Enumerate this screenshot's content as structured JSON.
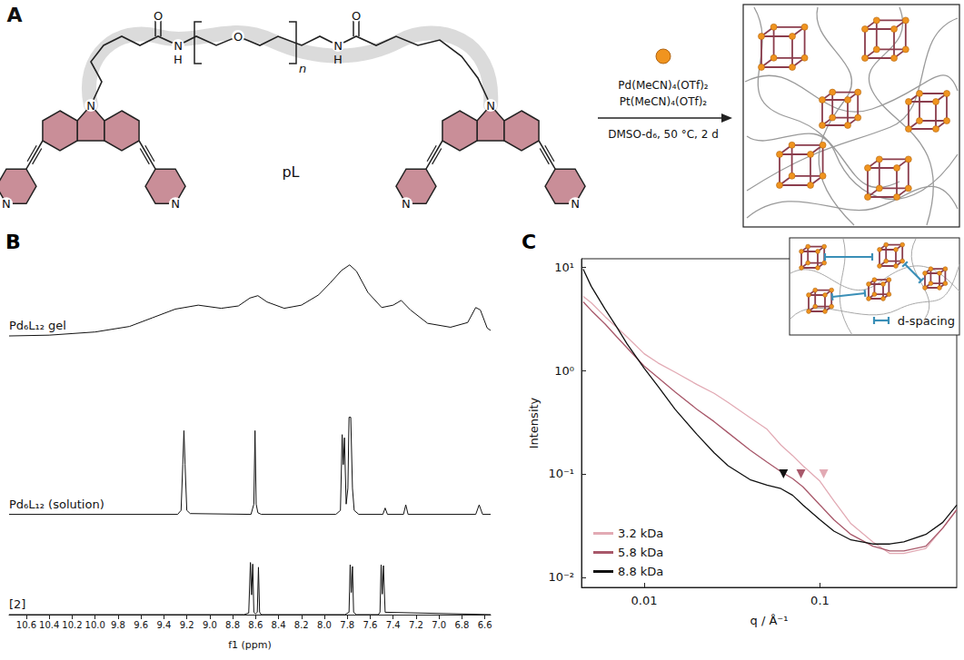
{
  "scheme": {
    "panel_label": "A",
    "ligand_label": "pL",
    "atoms": {
      "N": "N",
      "O": "O",
      "H": "H"
    },
    "repeat": "n",
    "reagents": [
      "Pd(MeCN)₄(OTf)₂",
      "Pt(MeCN)₄(OTf)₂"
    ],
    "conditions": "DMSO-d₆, 50 °C, 2 d"
  },
  "chart_data": [
    {
      "panel_label": "B",
      "type": "line",
      "x_label": "f1 (ppm)",
      "xlim": [
        10.75,
        6.55
      ],
      "xticks": [
        10.6,
        10.4,
        10.2,
        {
          "value": 10,
          "label": "10.0"
        },
        9.8,
        9.6,
        9.4,
        9.2,
        {
          "value": 9,
          "label": "9.0"
        },
        8.8,
        8.6,
        8.4,
        8.2,
        {
          "value": 8,
          "label": "8.0"
        },
        7.8,
        7.6,
        7.4,
        7.2,
        {
          "value": 7,
          "label": "7.0"
        },
        6.8,
        6.6
      ],
      "ylim": [
        0,
        46
      ],
      "tick_labels": "x",
      "grid": false,
      "series": [
        {
          "name": "Pd₆L₁₂ gel",
          "color": "#111111",
          "x": [
            10.75,
            10.4,
            10.0,
            9.7,
            9.5,
            9.3,
            9.1,
            8.9,
            8.75,
            8.65,
            8.58,
            8.5,
            8.35,
            8.2,
            8.05,
            7.95,
            7.85,
            7.78,
            7.72,
            7.62,
            7.5,
            7.4,
            7.33,
            7.25,
            7.1,
            6.9,
            6.75,
            6.68,
            6.64,
            6.58,
            6.55
          ],
          "values": [
            35.3,
            35.4,
            35.8,
            36.5,
            37.6,
            38.7,
            39.2,
            38.8,
            39.1,
            40.1,
            40.4,
            39.6,
            38.8,
            39.2,
            40.5,
            42.0,
            43.6,
            44.3,
            43.5,
            40.8,
            38.9,
            39.2,
            39.8,
            38.6,
            36.9,
            36.4,
            37.0,
            38.9,
            38.6,
            36.3,
            36.0
          ]
        },
        {
          "name": "Pd₆L₁₂ (solution)",
          "color": "#111111",
          "x": [
            10.75,
            9.28,
            9.25,
            9.235,
            9.225,
            9.215,
            9.2,
            9.17,
            8.64,
            8.615,
            8.605,
            8.595,
            8.58,
            8.55,
            7.9,
            7.86,
            7.845,
            7.835,
            7.825,
            7.81,
            7.795,
            7.785,
            7.77,
            7.755,
            7.74,
            7.7,
            7.49,
            7.47,
            7.45,
            7.31,
            7.29,
            7.27,
            6.68,
            6.65,
            6.62,
            6.55
          ],
          "values": [
            12.7,
            12.7,
            13.2,
            19,
            23.3,
            19,
            13.2,
            12.8,
            12.7,
            14,
            23.3,
            14,
            12.9,
            12.7,
            12.7,
            13.2,
            22.8,
            19,
            22.4,
            14,
            16,
            25,
            25,
            16,
            13.2,
            12.7,
            12.7,
            13.5,
            12.7,
            12.7,
            13.9,
            12.7,
            12.7,
            13.9,
            12.7,
            12.7
          ]
        },
        {
          "name": "[2]",
          "color": "#111111",
          "x": [
            10.75,
            8.7,
            8.66,
            8.645,
            8.635,
            8.625,
            8.615,
            8.6,
            8.585,
            8.575,
            8.565,
            8.55,
            7.82,
            7.785,
            7.775,
            7.765,
            7.755,
            7.745,
            7.72,
            7.53,
            7.515,
            7.505,
            7.495,
            7.485,
            7.47,
            6.55
          ],
          "values": [
            0,
            0,
            0.2,
            6.6,
            2.5,
            6.4,
            0.3,
            0.1,
            0.3,
            6.0,
            0.3,
            0,
            0,
            0.3,
            6.3,
            2.8,
            6.1,
            0.3,
            0,
            0,
            0.3,
            6.3,
            2.6,
            6.2,
            0.3,
            0
          ]
        }
      ]
    },
    {
      "panel_label": "C",
      "type": "line",
      "log": true,
      "x_label": "q / Å⁻¹",
      "y_label": "Intensity",
      "inset_label": "d-spacing",
      "legend": "lower left",
      "grid": false,
      "x": [
        0.0045,
        0.005,
        0.006,
        0.007,
        0.008,
        0.01,
        0.012,
        0.015,
        0.02,
        0.025,
        0.03,
        0.04,
        0.05,
        0.06,
        0.07,
        0.08,
        0.1,
        0.12,
        0.15,
        0.2,
        0.25,
        0.3,
        0.4,
        0.5,
        0.6
      ],
      "xlim": [
        0.0044,
        0.6
      ],
      "xticks": [
        0.01,
        0.1
      ],
      "ylim": [
        0.008,
        12
      ],
      "yticks": [
        {
          "value": 0.01,
          "label": "10⁻²"
        },
        {
          "value": 0.1,
          "label": "10⁻¹"
        },
        {
          "value": 1,
          "label": "10⁰"
        },
        {
          "value": 10,
          "label": "10¹"
        }
      ],
      "series": [
        {
          "name": "3.2 kDa",
          "color": "#e2aab4",
          "peak": {
            "x": 0.105,
            "y": 0.1
          },
          "values": [
            5.2,
            4.5,
            3.3,
            2.6,
            2.1,
            1.45,
            1.18,
            0.96,
            0.73,
            0.6,
            0.49,
            0.35,
            0.27,
            0.19,
            0.15,
            0.12,
            0.085,
            0.055,
            0.033,
            0.022,
            0.017,
            0.017,
            0.019,
            0.03,
            0.045
          ]
        },
        {
          "name": "5.8 kDa",
          "color": "#a8586a",
          "peak": {
            "x": 0.078,
            "y": 0.1
          },
          "values": [
            4.6,
            3.8,
            2.8,
            2.1,
            1.65,
            1.1,
            0.85,
            0.62,
            0.42,
            0.32,
            0.25,
            0.17,
            0.13,
            0.105,
            0.09,
            0.075,
            0.05,
            0.036,
            0.026,
            0.02,
            0.018,
            0.018,
            0.02,
            0.03,
            0.045
          ]
        },
        {
          "name": "8.8 kDa",
          "color": "#111111",
          "peak": {
            "x": 0.062,
            "y": 0.1
          },
          "values": [
            9.5,
            6.5,
            3.9,
            2.6,
            1.8,
            1.05,
            0.7,
            0.42,
            0.24,
            0.16,
            0.12,
            0.088,
            0.078,
            0.072,
            0.062,
            0.05,
            0.036,
            0.028,
            0.023,
            0.021,
            0.021,
            0.022,
            0.026,
            0.034,
            0.05
          ]
        }
      ]
    }
  ]
}
